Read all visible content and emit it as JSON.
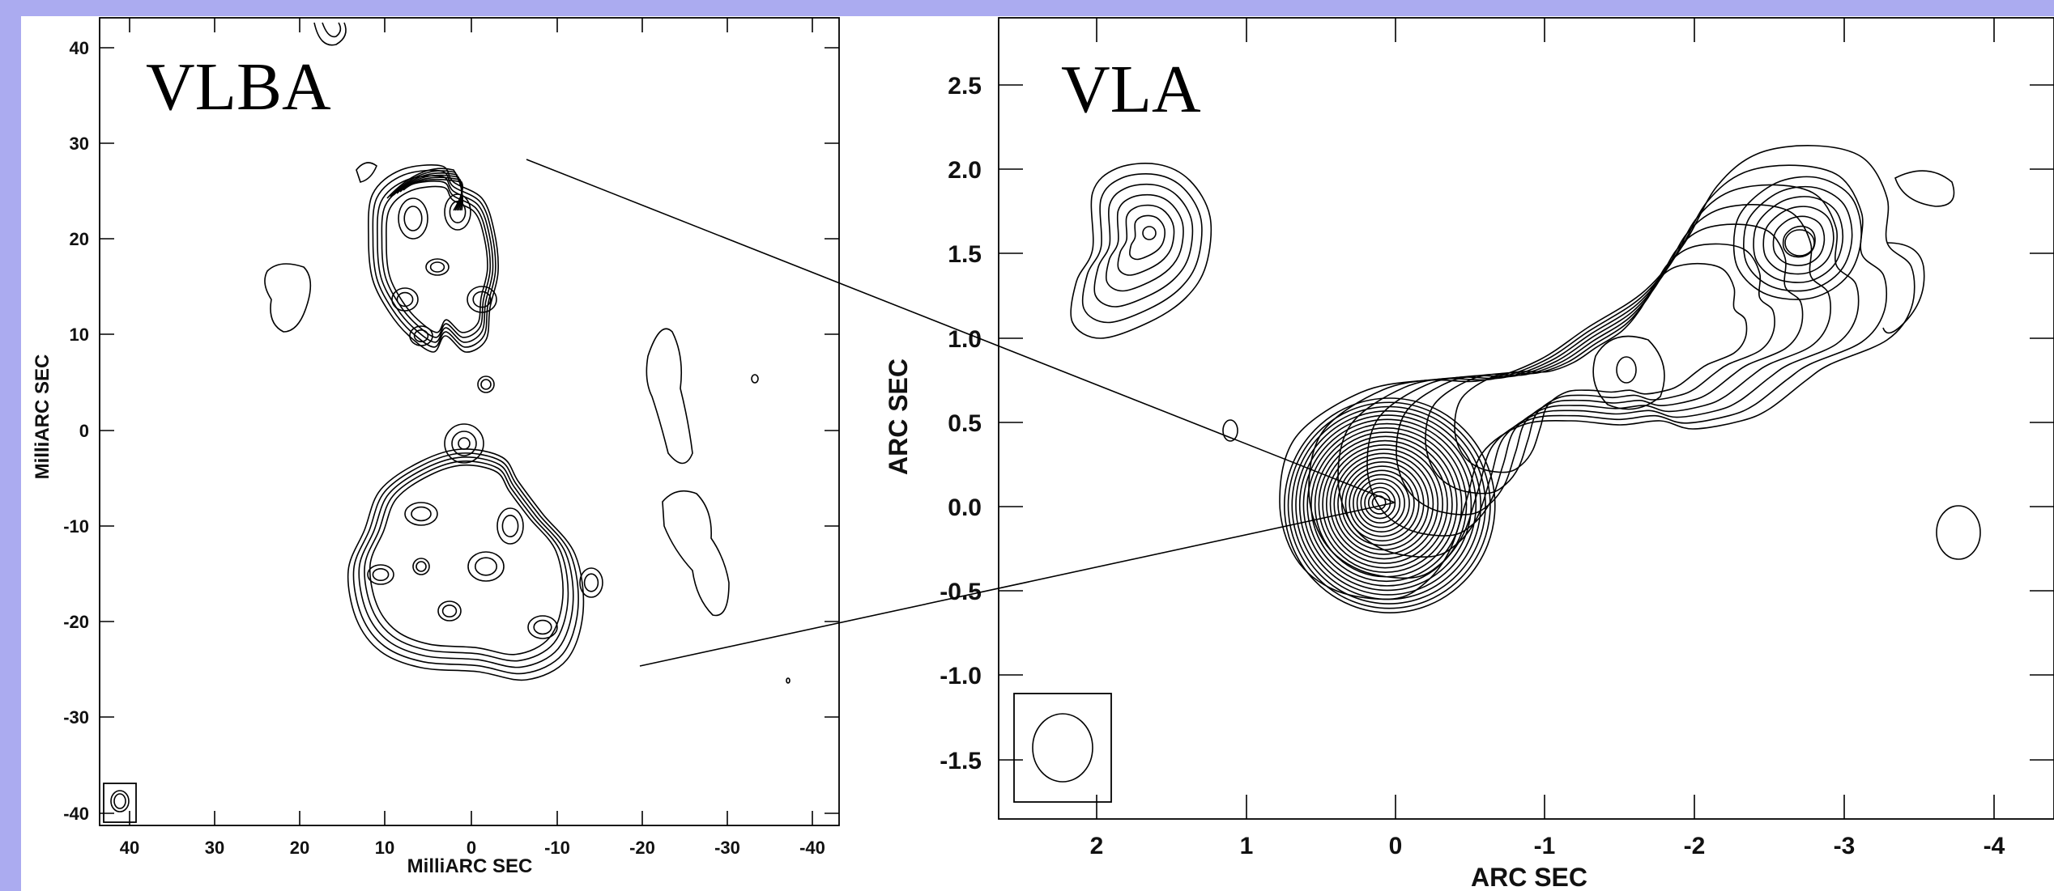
{
  "vlba": {
    "title": "VLBA",
    "xlabel": "MilliARC SEC",
    "ylabel": "MilliARC SEC",
    "xticks": [
      "40",
      "30",
      "20",
      "10",
      "0",
      "-10",
      "-20",
      "-30",
      "-40"
    ],
    "yticks": [
      "40",
      "30",
      "20",
      "10",
      "0",
      "-10",
      "-20",
      "-30",
      "-40"
    ]
  },
  "vla": {
    "title": "VLA",
    "xlabel": "ARC SEC",
    "ylabel": "ARC SEC",
    "xticks": [
      "2",
      "1",
      "0",
      "-1",
      "-2",
      "-3",
      "-4"
    ],
    "yticks": [
      "2.5",
      "2.0",
      "1.5",
      "1.0",
      "0.5",
      "0.0",
      "-0.5",
      "-1.0",
      "-1.5"
    ]
  },
  "colors": {
    "background": "#ababf0",
    "panel": "#ffffff",
    "ink": "#000000"
  }
}
